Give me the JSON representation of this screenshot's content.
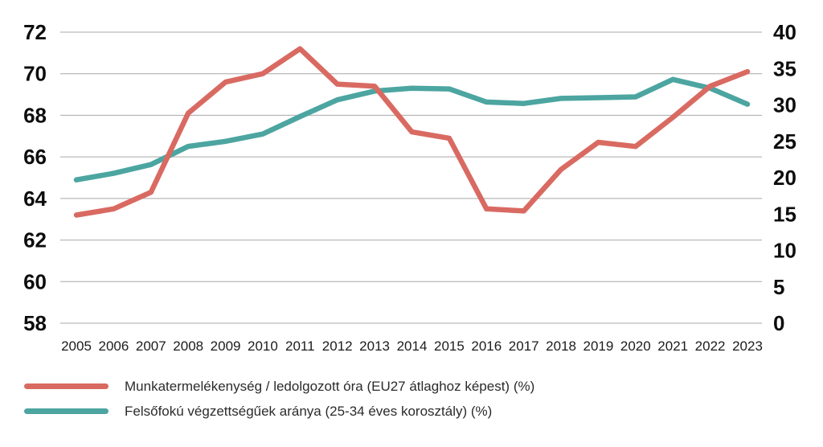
{
  "chart_data": {
    "type": "line",
    "x": [
      "2005",
      "2006",
      "2007",
      "2008",
      "2009",
      "2010",
      "2011",
      "2012",
      "2013",
      "2014",
      "2015",
      "2016",
      "2017",
      "2018",
      "2019",
      "2020",
      "2021",
      "2022",
      "2023"
    ],
    "series": [
      {
        "name": "Munkatermelékenység / ledolgozott óra (EU27 átlaghoz képest) (%)",
        "axis": "left",
        "color": "#d96a62",
        "values": [
          63.2,
          63.5,
          64.3,
          68.1,
          69.6,
          70.0,
          71.2,
          69.5,
          69.4,
          67.2,
          66.9,
          63.5,
          63.4,
          65.4,
          66.7,
          66.5,
          67.9,
          69.4,
          70.1
        ]
      },
      {
        "name": "Felsőfokú végzettségűek aránya (25-34 éves korosztály) (%)",
        "axis": "right",
        "color": "#4ca5a0",
        "values": [
          19.7,
          20.6,
          21.8,
          24.3,
          25.0,
          26.0,
          28.4,
          30.7,
          31.9,
          32.3,
          32.2,
          30.4,
          30.2,
          30.9,
          31.0,
          31.1,
          33.5,
          32.3,
          30.1
        ]
      }
    ],
    "left_axis": {
      "min": 58,
      "max": 72,
      "step": 2,
      "ticks": [
        72,
        70,
        68,
        66,
        64,
        62,
        60,
        58
      ]
    },
    "right_axis": {
      "min": 0,
      "max": 40,
      "step": 5,
      "ticks": [
        40,
        35,
        30,
        25,
        20,
        15,
        10,
        5,
        0
      ]
    },
    "title": "",
    "xlabel": "",
    "ylabel_left": "",
    "ylabel_right": "",
    "grid": "horizontal",
    "legend_position": "bottom-left"
  },
  "styles": {
    "background": "#ffffff",
    "grid_color": "#a8a8a8",
    "axis_number_color": "#0d0d0d",
    "year_label_color": "#1c1c1c",
    "legend_text_color": "#2b2b2b",
    "series_red": "#d96a62",
    "series_teal": "#4ca5a0"
  }
}
